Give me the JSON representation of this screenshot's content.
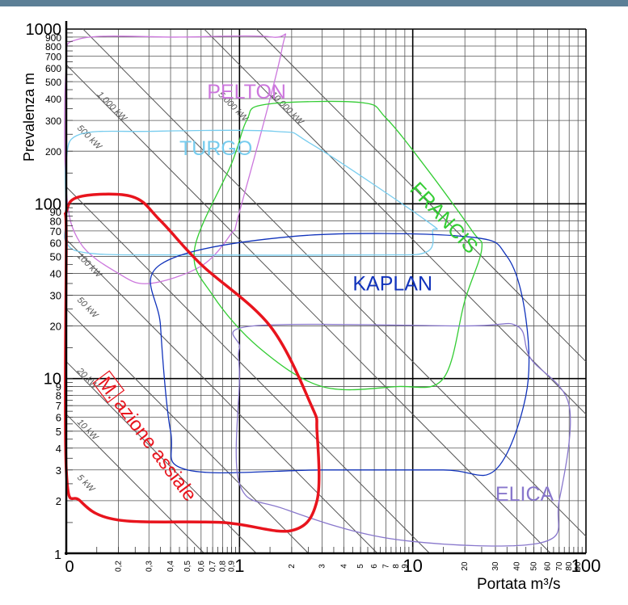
{
  "chart_data": {
    "type": "diagram",
    "xlabel": "Portata m³/s",
    "ylabel": "Prevalenza m",
    "x_scale": "log",
    "y_scale": "log",
    "xlim": [
      0.1,
      100
    ],
    "ylim": [
      1,
      1000
    ],
    "grid": true,
    "x_ticks_major": [
      {
        "v": 1,
        "label": "1"
      },
      {
        "v": 10,
        "label": "10"
      },
      {
        "v": 100,
        "label": "100"
      }
    ],
    "x_origin_label": "0",
    "x_ticks_minor": [
      {
        "v": 0.2,
        "label": "0,2"
      },
      {
        "v": 0.3,
        "label": "0,3"
      },
      {
        "v": 0.4,
        "label": "0,4"
      },
      {
        "v": 0.5,
        "label": "0,5"
      },
      {
        "v": 0.6,
        "label": "0,6"
      },
      {
        "v": 0.7,
        "label": "0,7"
      },
      {
        "v": 0.8,
        "label": "0,8"
      },
      {
        "v": 0.9,
        "label": "0,9"
      },
      {
        "v": 2,
        "label": "2"
      },
      {
        "v": 3,
        "label": "3"
      },
      {
        "v": 4,
        "label": "4"
      },
      {
        "v": 5,
        "label": "5"
      },
      {
        "v": 6,
        "label": "6"
      },
      {
        "v": 7,
        "label": "7"
      },
      {
        "v": 8,
        "label": "8"
      },
      {
        "v": 9,
        "label": "9"
      },
      {
        "v": 20,
        "label": "20"
      },
      {
        "v": 30,
        "label": "30"
      },
      {
        "v": 40,
        "label": "40"
      },
      {
        "v": 50,
        "label": "50"
      },
      {
        "v": 60,
        "label": "60"
      },
      {
        "v": 70,
        "label": "70"
      },
      {
        "v": 80,
        "label": "80"
      },
      {
        "v": 90,
        "label": "90"
      }
    ],
    "y_ticks_major": [
      {
        "v": 1,
        "label": "1"
      },
      {
        "v": 10,
        "label": "10"
      },
      {
        "v": 100,
        "label": "100"
      },
      {
        "v": 1000,
        "label": "1000"
      }
    ],
    "y_ticks_minor": [
      {
        "v": 2,
        "label": "2"
      },
      {
        "v": 3,
        "label": "3"
      },
      {
        "v": 4,
        "label": "4"
      },
      {
        "v": 5,
        "label": "5"
      },
      {
        "v": 6,
        "label": "6"
      },
      {
        "v": 7,
        "label": "7"
      },
      {
        "v": 8,
        "label": "8"
      },
      {
        "v": 9,
        "label": "9"
      },
      {
        "v": 20,
        "label": "20"
      },
      {
        "v": 30,
        "label": "30"
      },
      {
        "v": 40,
        "label": "40"
      },
      {
        "v": 50,
        "label": "50"
      },
      {
        "v": 60,
        "label": "60"
      },
      {
        "v": 70,
        "label": "70"
      },
      {
        "v": 80,
        "label": "80"
      },
      {
        "v": 90,
        "label": "90"
      },
      {
        "v": 200,
        "label": "200"
      },
      {
        "v": 300,
        "label": "300"
      },
      {
        "v": 400,
        "label": "400"
      },
      {
        "v": 500,
        "label": "500"
      },
      {
        "v": 600,
        "label": "600"
      },
      {
        "v": 700,
        "label": "700"
      },
      {
        "v": 800,
        "label": "800"
      },
      {
        "v": 900,
        "label": "900"
      }
    ],
    "power_lines": [
      {
        "kw": 5,
        "label": "5 kW"
      },
      {
        "kw": 10,
        "label": "10 kW"
      },
      {
        "kw": 20,
        "label": "20 kW"
      },
      {
        "kw": 50,
        "label": "50 kW"
      },
      {
        "kw": 100,
        "label": "100 kW"
      },
      {
        "kw": 500,
        "label": "500 kW"
      },
      {
        "kw": 1000,
        "label": "1.000 kW"
      },
      {
        "kw": 5000,
        "label": "5.000 kW"
      },
      {
        "kw": 10000,
        "label": "10.000 kW"
      }
    ],
    "regions": [
      {
        "name": "PELTON",
        "color": "#cc77dd",
        "label_at": [
          0.65,
          400
        ],
        "label_rot": 0,
        "points": [
          [
            0.12,
            880
          ],
          [
            0.45,
            900
          ],
          [
            1.55,
            900
          ],
          [
            1.75,
            750
          ],
          [
            1,
            90
          ],
          [
            0.9,
            68
          ],
          [
            0.6,
            44
          ],
          [
            0.3,
            35
          ],
          [
            0.2,
            40
          ],
          [
            0.12,
            60
          ],
          [
            0.1,
            120
          ],
          [
            0.1,
            600
          ]
        ]
      },
      {
        "name": "TURGO",
        "color": "#77ccee",
        "label_at": [
          0.45,
          190
        ],
        "label_rot": 0,
        "points": [
          [
            0.1,
            85
          ],
          [
            0.1,
            180
          ],
          [
            0.12,
            250
          ],
          [
            0.3,
            260
          ],
          [
            1.6,
            260
          ],
          [
            2.6,
            220
          ],
          [
            12,
            80
          ],
          [
            13,
            70
          ],
          [
            12,
            53
          ],
          [
            6,
            51
          ],
          [
            0.5,
            51
          ],
          [
            0.14,
            52
          ],
          [
            0.1,
            60
          ]
        ]
      },
      {
        "name": "FRANCIS",
        "color": "#33cc33",
        "label_at": [
          9.5,
          120
        ],
        "label_rot": 47,
        "points": [
          [
            0.55,
            55
          ],
          [
            0.9,
            170
          ],
          [
            1.1,
            300
          ],
          [
            1.4,
            370
          ],
          [
            5,
            380
          ],
          [
            7,
            310
          ],
          [
            12,
            160
          ],
          [
            22,
            70
          ],
          [
            25,
            55
          ],
          [
            20,
            28
          ],
          [
            15,
            10
          ],
          [
            8,
            9
          ],
          [
            3,
            9
          ],
          [
            1.3,
            15
          ],
          [
            0.7,
            30
          ]
        ]
      },
      {
        "name": "KAPLAN",
        "color": "#1133bb",
        "label_at": [
          4.5,
          32
        ],
        "label_rot": 0,
        "points": [
          [
            0.35,
            45
          ],
          [
            2,
            65
          ],
          [
            20,
            65
          ],
          [
            35,
            50
          ],
          [
            45,
            22
          ],
          [
            45,
            8
          ],
          [
            30,
            3
          ],
          [
            15,
            3
          ],
          [
            3,
            3
          ],
          [
            0.5,
            3
          ],
          [
            0.4,
            5
          ],
          [
            0.35,
            20
          ]
        ]
      },
      {
        "name": "ELICA",
        "color": "#8877cc",
        "label_at": [
          30,
          2
        ],
        "label_rot": 0,
        "points": [
          [
            1,
            15
          ],
          [
            1.2,
            20
          ],
          [
            20,
            20
          ],
          [
            40,
            20
          ],
          [
            48,
            13
          ],
          [
            80,
            7
          ],
          [
            70,
            2
          ],
          [
            55,
            1.15
          ],
          [
            8,
            1.2
          ],
          [
            1.8,
            1.8
          ],
          [
            1,
            2.5
          ],
          [
            1,
            10
          ]
        ]
      },
      {
        "name": "M.azione assiale",
        "color": "#e8141d",
        "label_prefix": "M.",
        "label_text": "azione assiale",
        "label_at": [
          0.15,
          9.5
        ],
        "label_rot": 53,
        "points": [
          [
            0.1,
            90
          ],
          [
            0.12,
            110
          ],
          [
            0.24,
            110
          ],
          [
            0.35,
            80
          ],
          [
            0.6,
            45
          ],
          [
            1.5,
            20
          ],
          [
            2.6,
            7
          ],
          [
            2.8,
            5
          ],
          [
            2.8,
            2
          ],
          [
            2,
            1.35
          ],
          [
            0.8,
            1.5
          ],
          [
            0.2,
            1.55
          ],
          [
            0.12,
            2
          ],
          [
            0.1,
            3
          ],
          [
            0.1,
            60
          ]
        ]
      }
    ]
  }
}
